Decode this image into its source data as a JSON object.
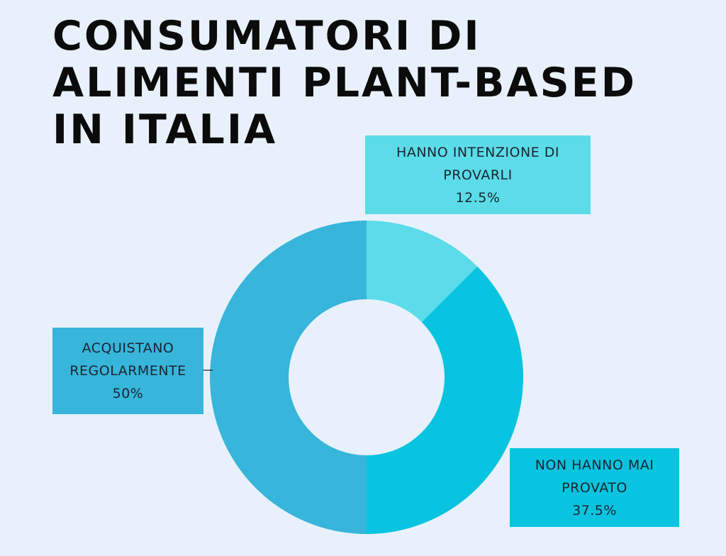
{
  "title_lines": [
    "CONSUMATORI DI",
    "ALIMENTI PLANT-BASED",
    "IN ITALIA"
  ],
  "colors": {
    "background": "#e8f1fb",
    "slice_provare": "#5cdce9",
    "slice_mai_provato": "#08c4e0",
    "slice_regolarmente": "#38b5db"
  },
  "chart_data": {
    "type": "pie",
    "variant": "donut",
    "title": "CONSUMATORI DI ALIMENTI PLANT-BASED IN ITALIA",
    "start": "top, clockwise",
    "slices": [
      {
        "label_lines": [
          "HANNO INTENZIONE DI",
          "PROVARLI"
        ],
        "value": 12.5,
        "value_label": "12.5%",
        "color": "#5cdce9"
      },
      {
        "label_lines": [
          "NON HANNO MAI",
          "PROVATO"
        ],
        "value": 37.5,
        "value_label": "37.5%",
        "color": "#08c4e0"
      },
      {
        "label_lines": [
          "ACQUISTANO",
          "REGOLARMENTE"
        ],
        "value": 50,
        "value_label": "50%",
        "color": "#38b5db"
      }
    ],
    "legend": "none (callout labels)"
  }
}
